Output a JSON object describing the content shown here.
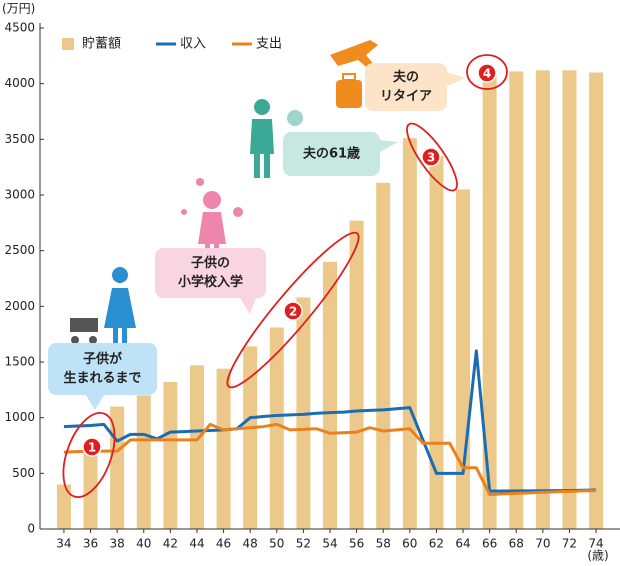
{
  "chart_data": {
    "type": "bar_line",
    "y_axis_label": "(万円)",
    "x_axis_label": "(歳)",
    "x": [
      34,
      35,
      36,
      37,
      38,
      39,
      40,
      41,
      42,
      43,
      44,
      45,
      46,
      47,
      48,
      49,
      50,
      51,
      52,
      53,
      54,
      55,
      56,
      57,
      58,
      59,
      60,
      61,
      62,
      63,
      64,
      65,
      66,
      67,
      68,
      69,
      70,
      71,
      72,
      73,
      74
    ],
    "xlim": [
      32.2,
      75.8
    ],
    "xticks": [
      34,
      36,
      38,
      40,
      42,
      44,
      46,
      48,
      50,
      52,
      54,
      56,
      58,
      60,
      62,
      64,
      66,
      68,
      70,
      72,
      74
    ],
    "ylim": [
      0,
      4500
    ],
    "yticks": [
      0,
      500,
      1000,
      1500,
      2000,
      2500,
      3000,
      3500,
      4000,
      4500
    ],
    "grid": false,
    "legend": "top",
    "series": [
      {
        "name": "貯蓄額",
        "kind": "bar",
        "color": "#ecc98a",
        "values": [
          400,
          null,
          700,
          null,
          1100,
          null,
          1200,
          null,
          1320,
          null,
          1470,
          null,
          1440,
          null,
          1640,
          null,
          1810,
          null,
          2080,
          null,
          2400,
          null,
          2770,
          null,
          3110,
          null,
          3510,
          null,
          3350,
          null,
          3050,
          null,
          4090,
          null,
          4110,
          null,
          4120,
          null,
          4120,
          null,
          4100
        ]
      },
      {
        "name": "収入",
        "kind": "line",
        "color": "#1a6db0",
        "values": [
          920,
          925,
          930,
          940,
          790,
          850,
          850,
          810,
          870,
          875,
          880,
          885,
          890,
          900,
          1000,
          1010,
          1020,
          1025,
          1030,
          1040,
          1045,
          1050,
          1060,
          1065,
          1070,
          1080,
          1090,
          795,
          500,
          500,
          500,
          1600,
          340,
          341,
          342,
          343,
          344,
          345,
          346,
          348,
          350
        ]
      },
      {
        "name": "支出",
        "kind": "line",
        "color": "#e8821e",
        "values": [
          690,
          695,
          700,
          700,
          700,
          800,
          800,
          800,
          800,
          800,
          800,
          940,
          890,
          900,
          910,
          920,
          940,
          890,
          895,
          900,
          860,
          865,
          870,
          910,
          880,
          890,
          900,
          770,
          770,
          770,
          550,
          550,
          310,
          315,
          320,
          325,
          330,
          335,
          338,
          342,
          345
        ]
      }
    ],
    "annotations": [
      {
        "marker": "1",
        "text": [
          "子供が",
          "生まれるまで"
        ]
      },
      {
        "marker": "2",
        "text": [
          "子供の",
          "小学校入学"
        ]
      },
      {
        "marker": "3",
        "text": [
          "夫の61歳"
        ]
      },
      {
        "marker": "4",
        "text": [
          "夫の",
          "リタイア"
        ]
      }
    ]
  }
}
